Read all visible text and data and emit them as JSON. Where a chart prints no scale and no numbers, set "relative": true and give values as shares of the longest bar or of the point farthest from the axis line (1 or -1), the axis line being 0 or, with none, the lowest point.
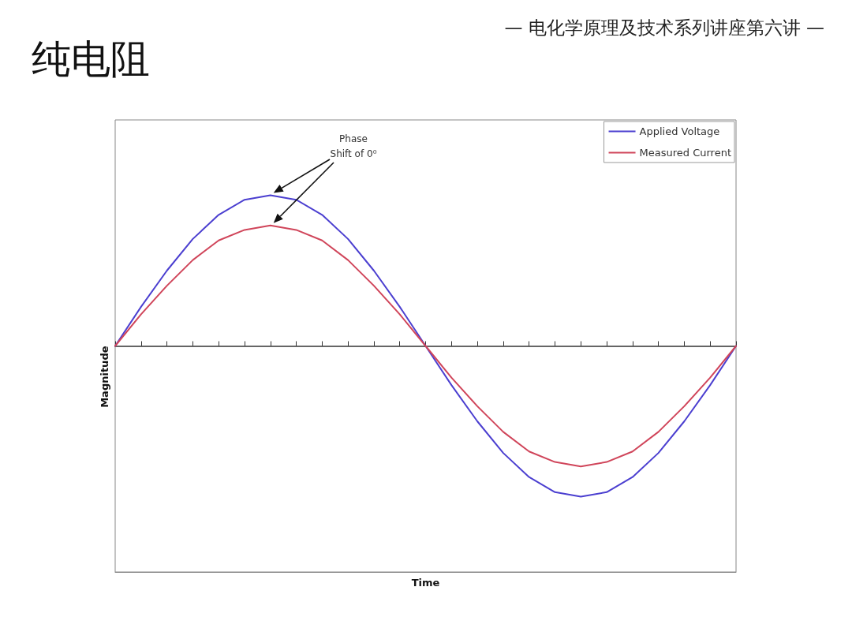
{
  "chart_data": {
    "type": "line",
    "title": "纯电阻",
    "subtitle": "— 电化学原理及技术系列讲座第六讲 —",
    "ylabel": "Magnitude",
    "relative": true,
    "categories": [
      null,
      null,
      null,
      null,
      null,
      null,
      null,
      null,
      null,
      null,
      null,
      null,
      null,
      null,
      null,
      null,
      null,
      null,
      null,
      null,
      null,
      null,
      null,
      null,
      null
    ],
    "series": [
      {
        "name": "Applied Voltage",
        "color": "#4b3fd0",
        "values": [
          0,
          0.26,
          0.5,
          0.71,
          0.87,
          0.97,
          1,
          0.97,
          0.87,
          0.71,
          0.5,
          0.26,
          0,
          -0.26,
          -0.5,
          -0.71,
          -0.87,
          -0.97,
          -1,
          -0.97,
          -0.87,
          -0.71,
          -0.5,
          -0.26,
          0
        ]
      },
      {
        "name": "Measured Current",
        "color": "#d0455a",
        "values": [
          0,
          0.21,
          0.4,
          0.57,
          0.7,
          0.77,
          0.8,
          0.77,
          0.7,
          0.57,
          0.4,
          0.21,
          0,
          -0.21,
          -0.4,
          -0.57,
          -0.7,
          -0.77,
          -0.8,
          -0.77,
          -0.7,
          -0.57,
          -0.4,
          -0.21,
          0
        ]
      }
    ],
    "annotations": [
      "Phase\nShift of 0⁰",
      "Time"
    ],
    "legend": "top right",
    "marker": "none",
    "line_style": "solid"
  }
}
